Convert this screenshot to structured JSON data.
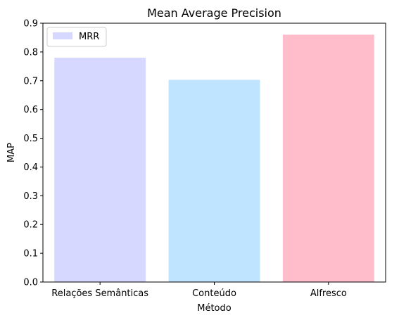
{
  "chart_data": {
    "type": "bar",
    "title": "Mean Average Precision",
    "xlabel": "Método",
    "ylabel": "MAP",
    "categories": [
      "Relações Semânticas",
      "Conteúdo",
      "Alfresco"
    ],
    "values": [
      0.78,
      0.703,
      0.86
    ],
    "colors": [
      "#d7d8ff",
      "#bfe4ff",
      "#ffbcca"
    ],
    "ylim": [
      0,
      0.9
    ],
    "yticks": [
      "0.0",
      "0.1",
      "0.2",
      "0.3",
      "0.4",
      "0.5",
      "0.6",
      "0.7",
      "0.8",
      "0.9"
    ],
    "grid": false,
    "legend": {
      "placement": "top-left",
      "entries": [
        {
          "label": "MRR",
          "color": "#d7d8ff"
        }
      ]
    }
  }
}
